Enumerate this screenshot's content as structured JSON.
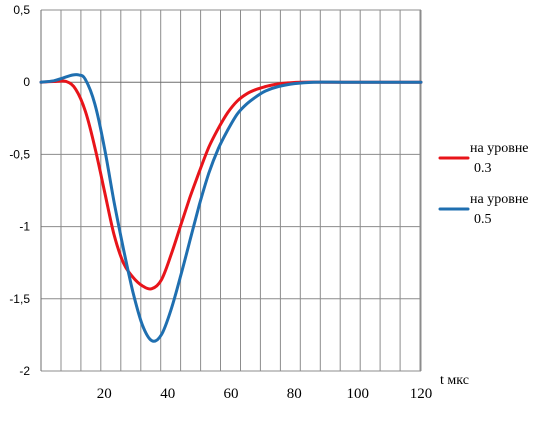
{
  "chart_data": {
    "type": "line",
    "title": "",
    "xlabel": "t мкс",
    "ylabel": "",
    "xlim": [
      0,
      120
    ],
    "ylim": [
      -2,
      0.5
    ],
    "grid": true,
    "legend_position": "right",
    "x_ticks": [
      20,
      40,
      60,
      80,
      100,
      120
    ],
    "x_tick_labels": [
      "20",
      "40",
      "60",
      "80",
      "100",
      "120"
    ],
    "y_ticks": [
      0.5,
      0,
      -0.5,
      -1,
      -1.5,
      -2
    ],
    "y_tick_labels": [
      "0,5",
      "0",
      "-0,5",
      "-1",
      "-1,5",
      "-2"
    ],
    "series": [
      {
        "name_line1": "на уровне",
        "name_line2": "0.3",
        "color": "#e8141a",
        "x": [
          0,
          4,
          8,
          11,
          14,
          17,
          20,
          23,
          26,
          29,
          32,
          35,
          38,
          41,
          44,
          47,
          50,
          53,
          56,
          59,
          62,
          65,
          68,
          71,
          74,
          78,
          82,
          90,
          100,
          110,
          120
        ],
        "y": [
          0,
          0.005,
          0.005,
          -0.05,
          -0.2,
          -0.45,
          -0.75,
          -1.05,
          -1.25,
          -1.35,
          -1.41,
          -1.43,
          -1.37,
          -1.2,
          -1.0,
          -0.8,
          -0.62,
          -0.45,
          -0.32,
          -0.21,
          -0.13,
          -0.08,
          -0.05,
          -0.03,
          -0.015,
          -0.005,
          0,
          0,
          0,
          0,
          0
        ]
      },
      {
        "name_line1": "на уровне",
        "name_line2": "0.5",
        "color": "#1f6fb0",
        "x": [
          0,
          4,
          7,
          10,
          12,
          14,
          17,
          20,
          23,
          26,
          29,
          32,
          35,
          38,
          41,
          44,
          47,
          50,
          53,
          56,
          59,
          62,
          65,
          68,
          71,
          75,
          80,
          86,
          95,
          105,
          120
        ],
        "y": [
          0,
          0.01,
          0.03,
          0.05,
          0.05,
          0.02,
          -0.15,
          -0.45,
          -0.82,
          -1.15,
          -1.45,
          -1.68,
          -1.79,
          -1.75,
          -1.58,
          -1.35,
          -1.1,
          -0.85,
          -0.63,
          -0.46,
          -0.33,
          -0.22,
          -0.15,
          -0.1,
          -0.06,
          -0.03,
          -0.01,
          0,
          0,
          0,
          0
        ]
      }
    ]
  }
}
